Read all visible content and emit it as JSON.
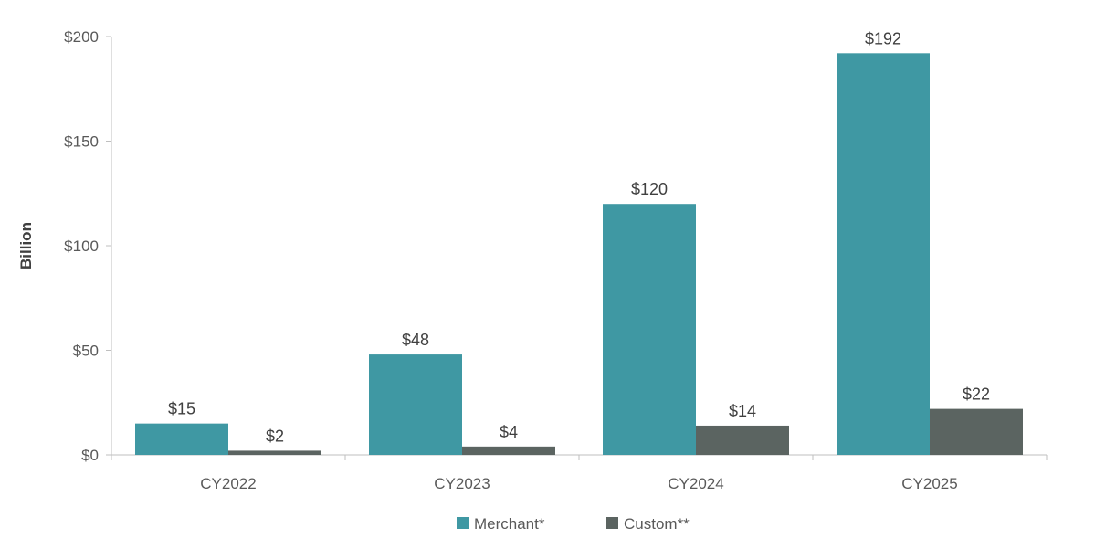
{
  "chart_data": {
    "type": "bar",
    "ylabel": "Billion",
    "ylim": [
      0,
      200
    ],
    "y_ticks": [
      0,
      50,
      100,
      150,
      200
    ],
    "y_tick_labels": [
      "$0",
      "$50",
      "$100",
      "$150",
      "$200"
    ],
    "categories": [
      "CY2022",
      "CY2023",
      "CY2024",
      "CY2025"
    ],
    "series": [
      {
        "name": "Merchant*",
        "values": [
          15,
          48,
          120,
          192
        ],
        "labels": [
          "$15",
          "$48",
          "$120",
          "$192"
        ],
        "color": "#3f98a3"
      },
      {
        "name": "Custom**",
        "values": [
          2,
          4,
          14,
          22
        ],
        "labels": [
          "$2",
          "$4",
          "$14",
          "$22"
        ],
        "color": "#5b6461"
      }
    ],
    "legend_position": "bottom",
    "grid": false
  }
}
